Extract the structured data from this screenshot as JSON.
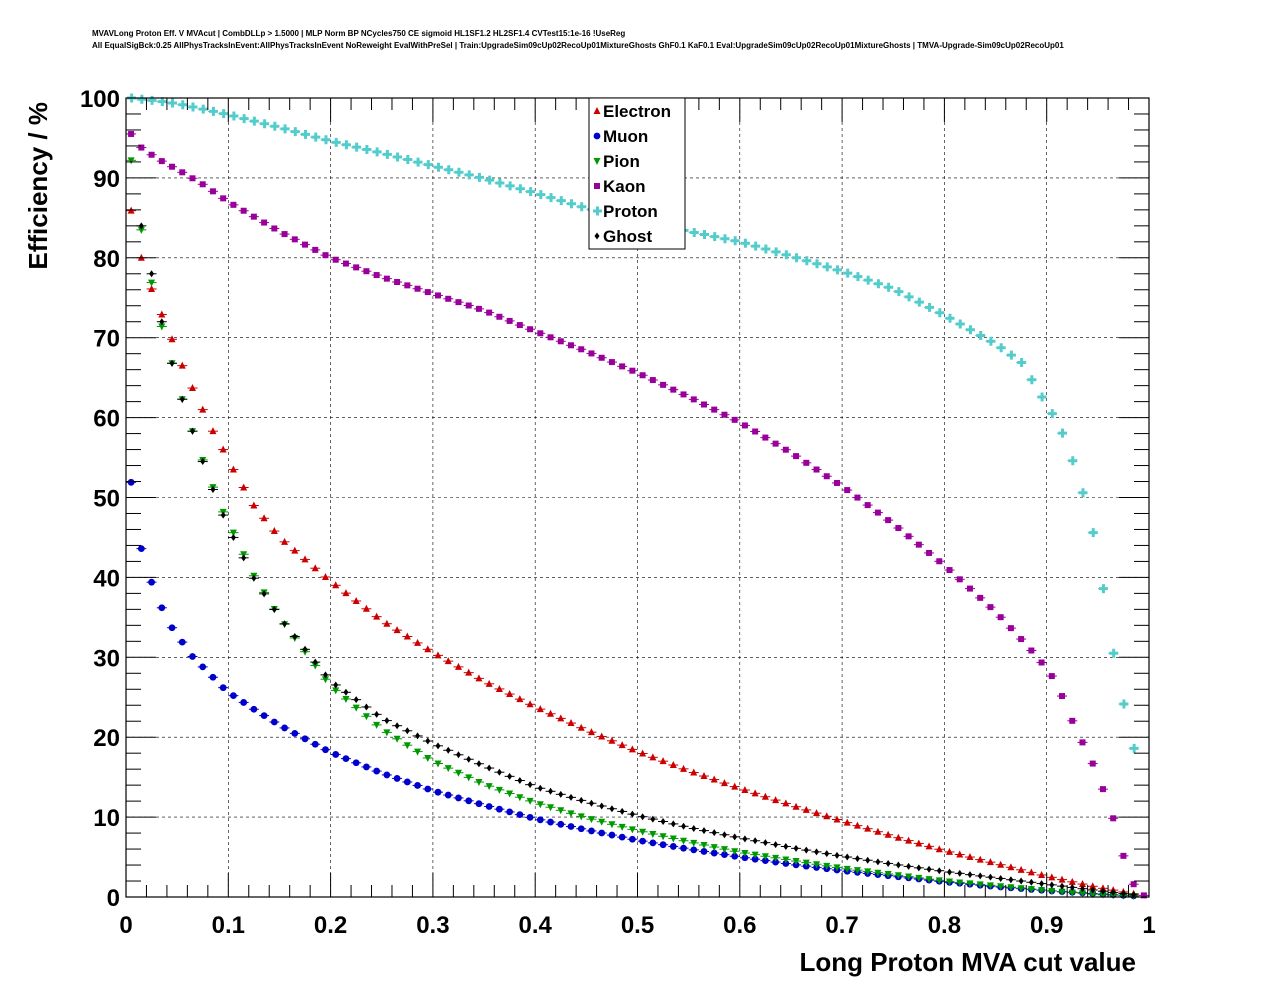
{
  "header": {
    "line1": "MVAVLong Proton Eff. V MVAcut | CombDLLp > 1.5000 | MLP Norm BP NCycles750 CE sigmoid HL1SF1.2 HL2SF1.4 CVTest15:1e-16 !UseReg",
    "line2": "All EqualSigBck:0.25 AllPhysTracksInEvent:AllPhysTracksInEvent NoReweight EvalWithPreSel | Train:UpgradeSim09cUp02RecoUp01MixtureGhosts GhF0.1 KaF0.1 Eval:UpgradeSim09cUp02RecoUp01MixtureGhosts | TMVA-Upgrade-Sim09cUp02RecoUp01"
  },
  "chart_data": {
    "type": "scatter",
    "title": "",
    "xlabel": "Long Proton MVA cut value",
    "ylabel": "Efficiency / %",
    "xlim": [
      0,
      1
    ],
    "ylim": [
      0,
      100
    ],
    "xticks": [
      0,
      0.1,
      0.2,
      0.3,
      0.4,
      0.5,
      0.6,
      0.7,
      0.8,
      0.9,
      1
    ],
    "xtick_labels": [
      "0",
      "0.1",
      "0.2",
      "0.3",
      "0.4",
      "0.5",
      "0.6",
      "0.7",
      "0.8",
      "0.9",
      "1"
    ],
    "yticks": [
      0,
      10,
      20,
      30,
      40,
      50,
      60,
      70,
      80,
      90,
      100
    ],
    "ytick_labels": [
      "0",
      "10",
      "20",
      "30",
      "40",
      "50",
      "60",
      "70",
      "80",
      "90",
      "100"
    ],
    "grid": true,
    "legend_position": "top-center",
    "x_step": 0.01,
    "series": [
      {
        "name": "Electron",
        "color": "#cc0000",
        "marker": "triangle-up",
        "points": [
          [
            0.005,
            85.9
          ],
          [
            0.015,
            80.0
          ],
          [
            0.025,
            76.1
          ],
          [
            0.035,
            72.9
          ],
          [
            0.045,
            69.8
          ],
          [
            0.055,
            66.5
          ],
          [
            0.065,
            63.7
          ],
          [
            0.075,
            61.0
          ],
          [
            0.085,
            58.3
          ],
          [
            0.095,
            56.0
          ],
          [
            0.105,
            53.5
          ],
          [
            0.125,
            49.0
          ],
          [
            0.15,
            45.0
          ],
          [
            0.2,
            39.5
          ],
          [
            0.25,
            34.6
          ],
          [
            0.3,
            30.6
          ],
          [
            0.35,
            27.0
          ],
          [
            0.4,
            23.8
          ],
          [
            0.45,
            20.9
          ],
          [
            0.5,
            18.2
          ],
          [
            0.55,
            15.8
          ],
          [
            0.6,
            13.6
          ],
          [
            0.65,
            11.5
          ],
          [
            0.7,
            9.5
          ],
          [
            0.75,
            7.6
          ],
          [
            0.8,
            5.8
          ],
          [
            0.85,
            4.2
          ],
          [
            0.9,
            2.6
          ],
          [
            0.95,
            1.2
          ],
          [
            0.99,
            0.3
          ]
        ]
      },
      {
        "name": "Muon",
        "color": "#0000cc",
        "marker": "circle",
        "points": [
          [
            0.005,
            51.9
          ],
          [
            0.015,
            43.6
          ],
          [
            0.025,
            39.4
          ],
          [
            0.035,
            36.2
          ],
          [
            0.045,
            33.7
          ],
          [
            0.055,
            31.9
          ],
          [
            0.065,
            30.1
          ],
          [
            0.075,
            28.8
          ],
          [
            0.085,
            27.5
          ],
          [
            0.095,
            26.2
          ],
          [
            0.105,
            25.2
          ],
          [
            0.125,
            23.5
          ],
          [
            0.15,
            21.5
          ],
          [
            0.2,
            18.1
          ],
          [
            0.25,
            15.5
          ],
          [
            0.3,
            13.3
          ],
          [
            0.35,
            11.5
          ],
          [
            0.4,
            9.8
          ],
          [
            0.45,
            8.4
          ],
          [
            0.5,
            7.1
          ],
          [
            0.55,
            6.0
          ],
          [
            0.6,
            5.0
          ],
          [
            0.65,
            4.1
          ],
          [
            0.7,
            3.3
          ],
          [
            0.75,
            2.6
          ],
          [
            0.8,
            1.9
          ],
          [
            0.85,
            1.3
          ],
          [
            0.9,
            0.8
          ],
          [
            0.95,
            0.4
          ],
          [
            0.99,
            0.1
          ]
        ]
      },
      {
        "name": "Pion",
        "color": "#009900",
        "marker": "triangle-down",
        "points": [
          [
            0.005,
            92.2
          ],
          [
            0.015,
            83.5
          ],
          [
            0.025,
            76.9
          ],
          [
            0.035,
            71.4
          ],
          [
            0.045,
            66.8
          ],
          [
            0.055,
            62.3
          ],
          [
            0.065,
            58.3
          ],
          [
            0.075,
            54.7
          ],
          [
            0.085,
            51.3
          ],
          [
            0.095,
            48.2
          ],
          [
            0.105,
            45.6
          ],
          [
            0.125,
            40.2
          ],
          [
            0.15,
            35.0
          ],
          [
            0.2,
            26.4
          ],
          [
            0.25,
            21.0
          ],
          [
            0.3,
            17.0
          ],
          [
            0.35,
            14.1
          ],
          [
            0.4,
            11.8
          ],
          [
            0.45,
            9.9
          ],
          [
            0.5,
            8.3
          ],
          [
            0.55,
            6.9
          ],
          [
            0.6,
            5.6
          ],
          [
            0.65,
            4.6
          ],
          [
            0.7,
            3.6
          ],
          [
            0.75,
            2.8
          ],
          [
            0.8,
            2.0
          ],
          [
            0.85,
            1.4
          ],
          [
            0.9,
            0.8
          ],
          [
            0.95,
            0.3
          ],
          [
            0.99,
            0.1
          ]
        ]
      },
      {
        "name": "Kaon",
        "color": "#990099",
        "marker": "square",
        "points": [
          [
            0.005,
            95.5
          ],
          [
            0.015,
            93.8
          ],
          [
            0.025,
            92.9
          ],
          [
            0.035,
            92.1
          ],
          [
            0.045,
            91.4
          ],
          [
            0.055,
            90.7
          ],
          [
            0.075,
            89.2
          ],
          [
            0.1,
            87.0
          ],
          [
            0.15,
            83.3
          ],
          [
            0.2,
            80.0
          ],
          [
            0.25,
            77.6
          ],
          [
            0.3,
            75.5
          ],
          [
            0.35,
            73.4
          ],
          [
            0.4,
            70.8
          ],
          [
            0.45,
            68.3
          ],
          [
            0.5,
            65.6
          ],
          [
            0.55,
            62.6
          ],
          [
            0.6,
            59.4
          ],
          [
            0.65,
            55.6
          ],
          [
            0.7,
            51.4
          ],
          [
            0.75,
            46.7
          ],
          [
            0.8,
            41.5
          ],
          [
            0.85,
            35.7
          ],
          [
            0.88,
            31.6
          ],
          [
            0.9,
            28.6
          ],
          [
            0.91,
            26.7
          ],
          [
            0.92,
            23.6
          ],
          [
            0.93,
            20.5
          ],
          [
            0.94,
            18.2
          ],
          [
            0.95,
            15.2
          ],
          [
            0.96,
            11.8
          ],
          [
            0.97,
            7.9
          ],
          [
            0.98,
            2.4
          ],
          [
            0.99,
            0.8
          ],
          [
            0.995,
            0.2
          ]
        ]
      },
      {
        "name": "Proton",
        "color": "#55cccc",
        "marker": "cross",
        "points": [
          [
            0.005,
            100.0
          ],
          [
            0.025,
            99.7
          ],
          [
            0.05,
            99.3
          ],
          [
            0.075,
            98.6
          ],
          [
            0.1,
            97.9
          ],
          [
            0.15,
            96.3
          ],
          [
            0.2,
            94.6
          ],
          [
            0.25,
            93.1
          ],
          [
            0.3,
            91.5
          ],
          [
            0.35,
            89.9
          ],
          [
            0.4,
            88.1
          ],
          [
            0.45,
            86.2
          ],
          [
            0.5,
            84.7
          ],
          [
            0.55,
            83.3
          ],
          [
            0.6,
            82.0
          ],
          [
            0.65,
            80.2
          ],
          [
            0.7,
            78.3
          ],
          [
            0.75,
            76.1
          ],
          [
            0.8,
            72.8
          ],
          [
            0.85,
            69.2
          ],
          [
            0.875,
            66.9
          ],
          [
            0.9,
            61.5
          ],
          [
            0.91,
            59.5
          ],
          [
            0.92,
            56.6
          ],
          [
            0.93,
            52.6
          ],
          [
            0.94,
            48.6
          ],
          [
            0.95,
            42.6
          ],
          [
            0.96,
            34.6
          ],
          [
            0.97,
            26.4
          ],
          [
            0.98,
            21.9
          ],
          [
            0.99,
            15.3
          ]
        ]
      },
      {
        "name": "Ghost",
        "color": "#000000",
        "marker": "diamond",
        "points": [
          [
            0.015,
            84.0
          ],
          [
            0.025,
            78.0
          ],
          [
            0.035,
            72.0
          ],
          [
            0.045,
            66.8
          ],
          [
            0.055,
            62.3
          ],
          [
            0.065,
            58.3
          ],
          [
            0.075,
            54.5
          ],
          [
            0.085,
            51.0
          ],
          [
            0.095,
            47.8
          ],
          [
            0.105,
            45.0
          ],
          [
            0.125,
            39.9
          ],
          [
            0.15,
            35.0
          ],
          [
            0.2,
            27.0
          ],
          [
            0.25,
            22.4
          ],
          [
            0.3,
            19.2
          ],
          [
            0.35,
            16.4
          ],
          [
            0.4,
            13.8
          ],
          [
            0.45,
            11.9
          ],
          [
            0.5,
            10.2
          ],
          [
            0.55,
            8.7
          ],
          [
            0.6,
            7.4
          ],
          [
            0.65,
            6.2
          ],
          [
            0.7,
            5.1
          ],
          [
            0.75,
            4.1
          ],
          [
            0.8,
            3.2
          ],
          [
            0.85,
            2.4
          ],
          [
            0.9,
            1.6
          ],
          [
            0.95,
            0.8
          ],
          [
            0.99,
            0.2
          ]
        ]
      }
    ]
  }
}
